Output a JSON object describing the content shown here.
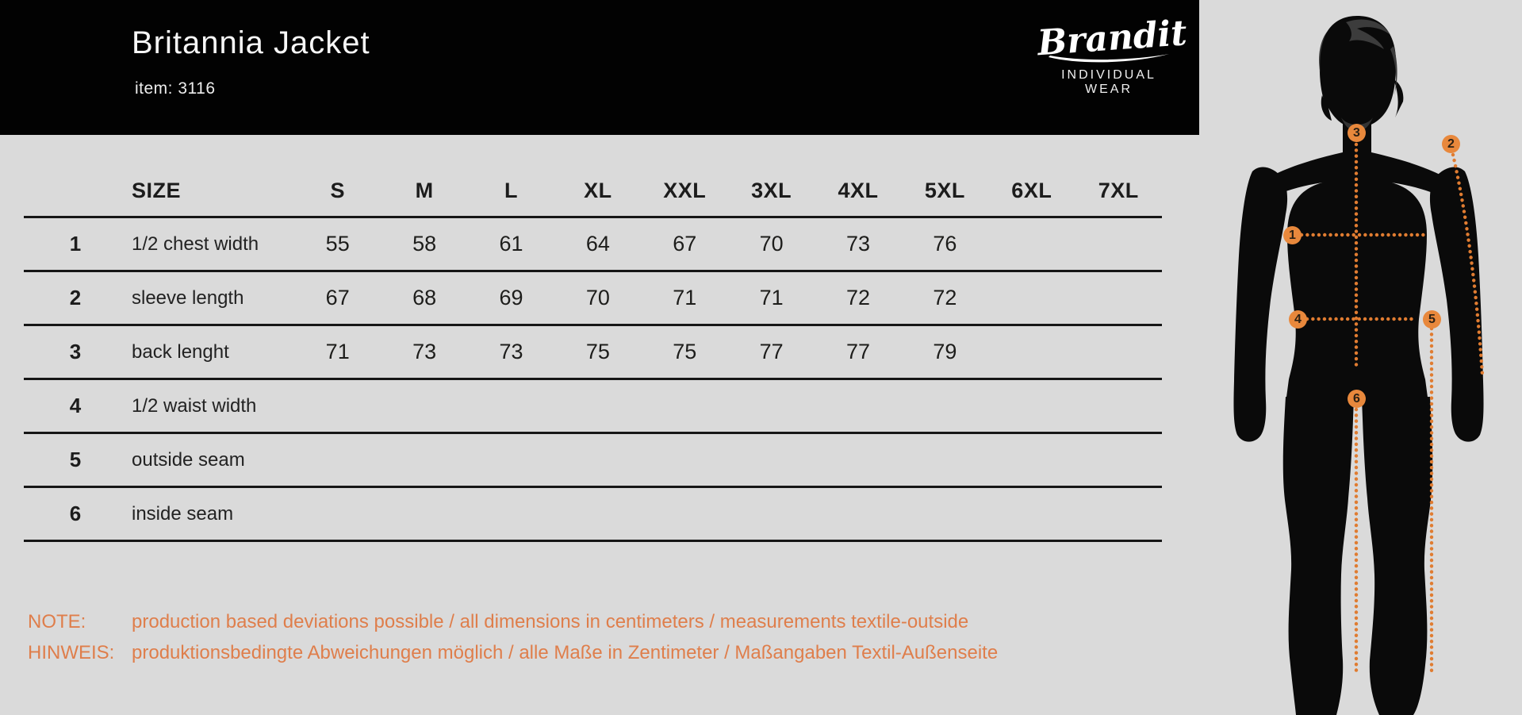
{
  "header": {
    "title": "Britannia Jacket",
    "item_label": "item: 3116",
    "brand": {
      "name": "Brandit",
      "tagline": "INDIVIDUAL WEAR"
    }
  },
  "table": {
    "size_label": "SIZE",
    "columns": [
      "S",
      "M",
      "L",
      "XL",
      "XXL",
      "3XL",
      "4XL",
      "5XL",
      "6XL",
      "7XL"
    ],
    "rows": [
      {
        "num": "1",
        "label": "1/2 chest width",
        "values": [
          "55",
          "58",
          "61",
          "64",
          "67",
          "70",
          "73",
          "76",
          "",
          ""
        ]
      },
      {
        "num": "2",
        "label": "sleeve length",
        "values": [
          "67",
          "68",
          "69",
          "70",
          "71",
          "71",
          "72",
          "72",
          "",
          ""
        ]
      },
      {
        "num": "3",
        "label": "back lenght",
        "values": [
          "71",
          "73",
          "73",
          "75",
          "75",
          "77",
          "77",
          "79",
          "",
          ""
        ]
      },
      {
        "num": "4",
        "label": "1/2 waist width",
        "values": [
          "",
          "",
          "",
          "",
          "",
          "",
          "",
          "",
          "",
          ""
        ]
      },
      {
        "num": "5",
        "label": "outside seam",
        "values": [
          "",
          "",
          "",
          "",
          "",
          "",
          "",
          "",
          "",
          ""
        ]
      },
      {
        "num": "6",
        "label": "inside seam",
        "values": [
          "",
          "",
          "",
          "",
          "",
          "",
          "",
          "",
          "",
          ""
        ]
      }
    ]
  },
  "notes": [
    {
      "label": "NOTE:",
      "text": "production based deviations possible / all dimensions in centimeters / measurements textile-outside"
    },
    {
      "label": "HINWEIS:",
      "text": "produktionsbedingte Abweichungen möglich / alle Maße in Zentimeter / Maßangaben Textil-Außenseite"
    }
  ],
  "figure": {
    "markers": [
      {
        "label": "1"
      },
      {
        "label": "2"
      },
      {
        "label": "3"
      },
      {
        "label": "4"
      },
      {
        "label": "5"
      },
      {
        "label": "6"
      }
    ]
  },
  "colors": {
    "background": "#dadada",
    "header_black": "#020202",
    "ink": "#1c1c1c",
    "marker_orange": "#e8883c",
    "dots_orange": "#e07c31",
    "note_orange": "#df7e4b"
  }
}
